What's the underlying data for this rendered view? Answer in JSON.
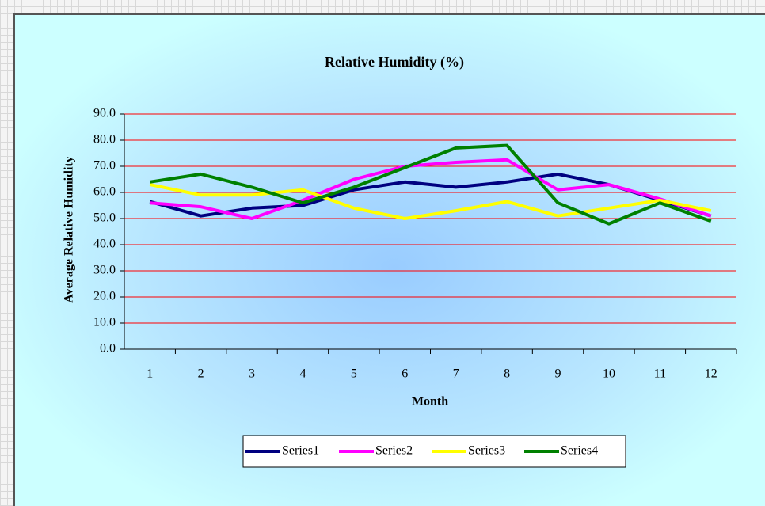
{
  "chart_data": {
    "type": "line",
    "title": "Relative Humidity (%)",
    "x_label": "Month",
    "y_label": "Average Relative Humidity",
    "categories": [
      "1",
      "2",
      "3",
      "4",
      "5",
      "6",
      "7",
      "8",
      "9",
      "10",
      "11",
      "12"
    ],
    "series": [
      {
        "name": "Series1",
        "color": "#000080",
        "values": [
          56.5,
          51,
          54,
          55,
          61,
          64,
          62,
          64,
          67,
          63,
          57,
          51
        ]
      },
      {
        "name": "Series2",
        "color": "#ff00ff",
        "values": [
          56,
          54.5,
          50,
          57,
          65,
          70,
          71.5,
          72.5,
          61,
          63,
          57.5,
          51
        ]
      },
      {
        "name": "Series3",
        "color": "#ffff00",
        "values": [
          63,
          59,
          59,
          61,
          54,
          50,
          53,
          56.5,
          51,
          54,
          57,
          53
        ]
      },
      {
        "name": "Series4",
        "color": "#008000",
        "values": [
          64,
          67,
          62,
          56,
          62,
          69.5,
          77,
          78,
          56,
          48,
          56,
          49
        ]
      }
    ],
    "ylim": [
      0,
      90
    ],
    "yticks": [
      {
        "value": 0,
        "label": "0.0"
      },
      {
        "value": 10,
        "label": "10.0"
      },
      {
        "value": 20,
        "label": "20.0"
      },
      {
        "value": 30,
        "label": "30.0"
      },
      {
        "value": 40,
        "label": "40.0"
      },
      {
        "value": 50,
        "label": "50.0"
      },
      {
        "value": 60,
        "label": "60.0"
      },
      {
        "value": 70,
        "label": "70.0"
      },
      {
        "value": 80,
        "label": "80.0"
      },
      {
        "value": 90,
        "label": "90.0"
      }
    ],
    "grid": true,
    "grid_color": "#ff0000",
    "legend": "bottom"
  }
}
